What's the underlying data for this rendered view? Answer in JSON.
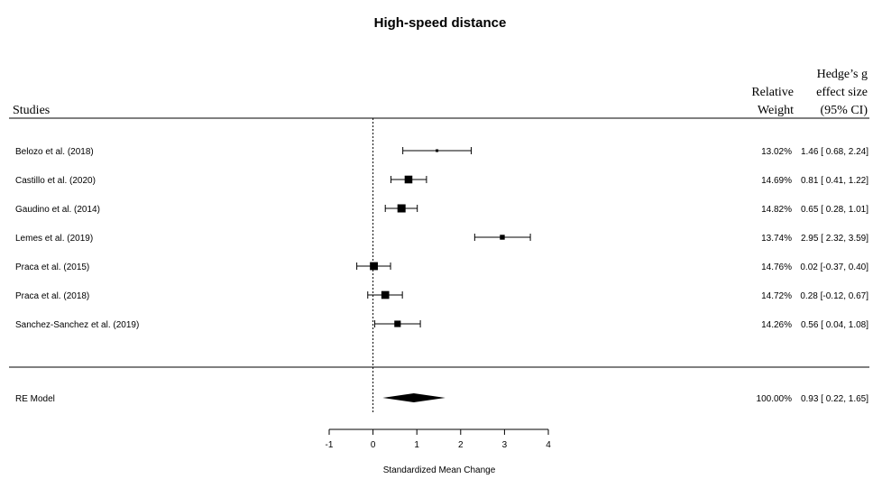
{
  "chart_data": {
    "type": "forest",
    "title": "High-speed distance",
    "xlabel": "Standardized Mean Change",
    "xlim": [
      -1,
      4
    ],
    "xticks": [
      -1,
      0,
      1,
      2,
      3,
      4
    ],
    "reference_line": 0,
    "headers": {
      "studies": "Studies",
      "weight": [
        "Relative",
        "Weight"
      ],
      "effect": [
        "Hedge’s g",
        "effect size",
        "(95% CI)"
      ]
    },
    "studies": [
      {
        "name": "Belozo et al. (2018)",
        "estimate": 1.46,
        "lower": 0.68,
        "upper": 2.24,
        "weight": 13.02,
        "weight_label": "13.02%",
        "ci_label": "1.46 [ 0.68, 2.24]"
      },
      {
        "name": "Castillo et al. (2020)",
        "estimate": 0.81,
        "lower": 0.41,
        "upper": 1.22,
        "weight": 14.69,
        "weight_label": "14.69%",
        "ci_label": "0.81 [ 0.41, 1.22]"
      },
      {
        "name": "Gaudino et al. (2014)",
        "estimate": 0.65,
        "lower": 0.28,
        "upper": 1.01,
        "weight": 14.82,
        "weight_label": "14.82%",
        "ci_label": "0.65 [ 0.28, 1.01]"
      },
      {
        "name": "Lemes et al. (2019)",
        "estimate": 2.95,
        "lower": 2.32,
        "upper": 3.59,
        "weight": 13.74,
        "weight_label": "13.74%",
        "ci_label": "2.95 [ 2.32, 3.59]"
      },
      {
        "name": "Praca et al. (2015)",
        "estimate": 0.02,
        "lower": -0.37,
        "upper": 0.4,
        "weight": 14.76,
        "weight_label": "14.76%",
        "ci_label": "0.02 [-0.37, 0.40]"
      },
      {
        "name": "Praca et al. (2018)",
        "estimate": 0.28,
        "lower": -0.12,
        "upper": 0.67,
        "weight": 14.72,
        "weight_label": "14.72%",
        "ci_label": "0.28 [-0.12, 0.67]"
      },
      {
        "name": "Sanchez-Sanchez et al. (2019)",
        "estimate": 0.56,
        "lower": 0.04,
        "upper": 1.08,
        "weight": 14.26,
        "weight_label": "14.26%",
        "ci_label": "0.56 [ 0.04, 1.08]"
      }
    ],
    "summary": {
      "name": "RE Model",
      "estimate": 0.93,
      "lower": 0.22,
      "upper": 1.65,
      "weight_label": "100.00%",
      "ci_label": "0.93 [ 0.22, 1.65]"
    }
  }
}
